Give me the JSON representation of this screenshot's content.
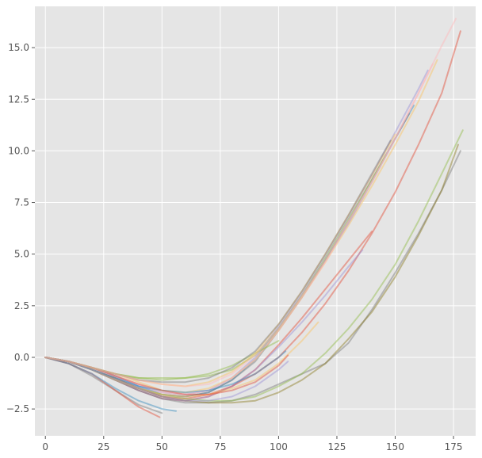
{
  "chart_data": {
    "type": "line",
    "title": "",
    "xlabel": "",
    "ylabel": "",
    "xlim": [
      -4.5,
      184.5
    ],
    "ylim": [
      -3.8,
      17.0
    ],
    "xticks": [
      0,
      25,
      50,
      75,
      100,
      125,
      150,
      175
    ],
    "yticks": [
      -2.5,
      0.0,
      2.5,
      5.0,
      7.5,
      10.0,
      12.5,
      15.0
    ],
    "xtick_labels": [
      "0",
      "25",
      "50",
      "75",
      "100",
      "125",
      "150",
      "175"
    ],
    "ytick_labels": [
      "−2.5",
      "0.0",
      "2.5",
      "5.0",
      "7.5",
      "10.0",
      "12.5",
      "15.0"
    ],
    "grid": true,
    "legend": "none",
    "style": {
      "axes_bg": "#e5e5e5",
      "grid_color": "#ffffff",
      "tick_color": "#555555",
      "line_alpha": 0.45
    },
    "series": [
      {
        "color": "#e24a33",
        "x": [
          0,
          10,
          20,
          30,
          40,
          50,
          60,
          70,
          80,
          90,
          100,
          110,
          120,
          130,
          140,
          150,
          160,
          170,
          178
        ],
        "y": [
          0,
          -0.2,
          -0.6,
          -1.0,
          -1.5,
          -1.9,
          -2.0,
          -1.8,
          -1.4,
          -0.8,
          0.0,
          1.2,
          2.6,
          4.2,
          6.0,
          8.0,
          10.3,
          12.8,
          15.8
        ]
      },
      {
        "color": "#348abd",
        "x": [
          0,
          10,
          20,
          30,
          40,
          50,
          60,
          70,
          80,
          90,
          100,
          110,
          120,
          130,
          140,
          150,
          158
        ],
        "y": [
          0,
          -0.2,
          -0.5,
          -0.9,
          -1.4,
          -1.8,
          -1.9,
          -1.7,
          -1.1,
          -0.1,
          1.4,
          3.0,
          4.7,
          6.5,
          8.5,
          10.6,
          12.2
        ]
      },
      {
        "color": "#988ed5",
        "x": [
          0,
          10,
          20,
          30,
          40,
          50,
          60,
          70,
          80,
          90,
          100,
          110,
          120,
          130,
          140,
          150,
          160,
          164
        ],
        "y": [
          0,
          -0.2,
          -0.5,
          -0.9,
          -1.4,
          -1.7,
          -1.8,
          -1.6,
          -1.0,
          0.0,
          1.5,
          3.1,
          4.9,
          6.8,
          8.8,
          10.9,
          13.0,
          13.9
        ]
      },
      {
        "color": "#777777",
        "x": [
          0,
          10,
          20,
          30,
          40,
          50,
          60,
          70,
          80,
          90,
          100,
          110,
          120,
          130,
          140,
          150,
          156
        ],
        "y": [
          0,
          -0.2,
          -0.6,
          -1.0,
          -1.5,
          -1.8,
          -1.9,
          -1.7,
          -1.1,
          -0.2,
          1.3,
          2.9,
          4.7,
          6.6,
          8.6,
          10.6,
          11.8
        ]
      },
      {
        "color": "#fbc15e",
        "x": [
          0,
          10,
          20,
          30,
          40,
          50,
          60,
          70,
          80,
          90,
          100,
          110,
          120,
          130,
          140,
          150,
          160,
          168
        ],
        "y": [
          0,
          -0.2,
          -0.5,
          -0.8,
          -1.2,
          -1.6,
          -1.7,
          -1.5,
          -1.0,
          -0.1,
          1.3,
          2.9,
          4.6,
          6.4,
          8.3,
          10.3,
          12.4,
          14.4
        ]
      },
      {
        "color": "#8eba42",
        "x": [
          0,
          10,
          20,
          30,
          40,
          50,
          60,
          70,
          80,
          90,
          100,
          110,
          120,
          130,
          140,
          146
        ],
        "y": [
          0,
          -0.2,
          -0.5,
          -0.8,
          -1.0,
          -1.0,
          -1.0,
          -0.9,
          -0.6,
          0.1,
          1.4,
          3.0,
          4.8,
          6.7,
          8.6,
          9.8
        ]
      },
      {
        "color": "#ffb5b8",
        "x": [
          0,
          10,
          20,
          30,
          40,
          50,
          60,
          70,
          80,
          90,
          100,
          110,
          120,
          130,
          140,
          150,
          160,
          170,
          176
        ],
        "y": [
          0,
          -0.2,
          -0.5,
          -0.9,
          -1.3,
          -1.7,
          -1.8,
          -1.6,
          -1.0,
          -0.1,
          1.3,
          2.9,
          4.6,
          6.5,
          8.5,
          10.6,
          12.8,
          15.1,
          16.4
        ]
      },
      {
        "color": "#e24a33",
        "x": [
          0,
          10,
          20,
          30,
          40,
          50,
          60,
          70,
          80,
          90,
          100,
          110,
          120,
          130,
          140
        ],
        "y": [
          0,
          -0.2,
          -0.6,
          -1.1,
          -1.6,
          -2.0,
          -2.1,
          -1.9,
          -1.4,
          -0.6,
          0.6,
          1.9,
          3.3,
          4.7,
          6.1
        ]
      },
      {
        "color": "#988ed5",
        "x": [
          0,
          10,
          20,
          30,
          40,
          50,
          60,
          70,
          80,
          90,
          100,
          110,
          120,
          130,
          136
        ],
        "y": [
          0,
          -0.2,
          -0.6,
          -1.1,
          -1.6,
          -2.0,
          -2.1,
          -1.9,
          -1.4,
          -0.6,
          0.5,
          1.7,
          3.0,
          4.4,
          5.2
        ]
      },
      {
        "color": "#777777",
        "x": [
          0,
          10,
          20,
          30,
          40,
          50,
          60,
          70,
          80,
          90,
          100,
          110,
          120,
          130,
          140,
          150,
          160,
          170,
          178
        ],
        "y": [
          0,
          -0.2,
          -0.6,
          -1.1,
          -1.6,
          -2.0,
          -2.2,
          -2.2,
          -2.1,
          -1.8,
          -1.3,
          -0.8,
          -0.3,
          0.7,
          2.3,
          4.1,
          6.0,
          8.1,
          10.0
        ]
      },
      {
        "color": "#8eba42",
        "x": [
          0,
          10,
          20,
          30,
          40,
          50,
          60,
          70,
          80,
          90,
          100,
          110,
          120,
          130,
          140,
          150,
          160,
          170,
          179
        ],
        "y": [
          0,
          -0.2,
          -0.6,
          -1.1,
          -1.5,
          -1.8,
          -2.0,
          -2.1,
          -2.1,
          -1.9,
          -1.4,
          -0.8,
          0.2,
          1.4,
          2.8,
          4.5,
          6.6,
          8.9,
          11.0
        ]
      },
      {
        "color": "#8a7a20",
        "x": [
          0,
          10,
          20,
          30,
          40,
          50,
          60,
          70,
          80,
          90,
          100,
          110,
          120,
          130,
          140,
          150,
          160,
          170,
          177
        ],
        "y": [
          0,
          -0.2,
          -0.6,
          -1.1,
          -1.5,
          -1.9,
          -2.1,
          -2.2,
          -2.2,
          -2.1,
          -1.7,
          -1.1,
          -0.3,
          0.9,
          2.2,
          3.9,
          5.9,
          8.1,
          10.3
        ]
      },
      {
        "color": "#fbc15e",
        "x": [
          0,
          10,
          20,
          30,
          40,
          50,
          60,
          70,
          80,
          90,
          100,
          110,
          117
        ],
        "y": [
          0,
          -0.2,
          -0.6,
          -1.1,
          -1.5,
          -1.8,
          -1.9,
          -1.8,
          -1.5,
          -1.1,
          -0.3,
          0.8,
          1.7
        ]
      },
      {
        "color": "#348abd",
        "x": [
          0,
          10,
          20,
          30,
          40,
          50,
          60,
          70,
          80,
          90,
          100,
          103
        ],
        "y": [
          0,
          -0.2,
          -0.6,
          -1.0,
          -1.4,
          -1.6,
          -1.7,
          -1.6,
          -1.3,
          -0.8,
          0.0,
          0.3
        ]
      },
      {
        "color": "#e24a33",
        "x": [
          0,
          10,
          20,
          30,
          40,
          50,
          60,
          70,
          80,
          90,
          100,
          104
        ],
        "y": [
          0,
          -0.2,
          -0.5,
          -0.9,
          -1.3,
          -1.6,
          -1.8,
          -1.8,
          -1.6,
          -1.2,
          -0.4,
          0.1
        ]
      },
      {
        "color": "#777777",
        "x": [
          0,
          10,
          20,
          30,
          40,
          50
        ],
        "y": [
          0,
          -0.3,
          -0.9,
          -1.6,
          -2.3,
          -2.7
        ]
      },
      {
        "color": "#e24a33",
        "x": [
          0,
          10,
          20,
          30,
          40,
          49
        ],
        "y": [
          0,
          -0.3,
          -0.8,
          -1.6,
          -2.4,
          -2.9
        ]
      },
      {
        "color": "#348abd",
        "x": [
          0,
          10,
          20,
          30,
          40,
          50,
          56
        ],
        "y": [
          0,
          -0.3,
          -0.8,
          -1.5,
          -2.1,
          -2.5,
          -2.6
        ]
      },
      {
        "color": "#8eba42",
        "x": [
          0,
          10,
          20,
          30,
          40,
          50,
          60,
          70,
          80,
          90,
          100
        ],
        "y": [
          0,
          -0.2,
          -0.5,
          -0.8,
          -1.0,
          -1.1,
          -1.0,
          -0.8,
          -0.4,
          0.2,
          0.8
        ]
      },
      {
        "color": "#988ed5",
        "x": [
          0,
          10,
          20,
          30,
          40,
          50,
          60,
          70,
          80,
          90,
          100,
          104
        ],
        "y": [
          0,
          -0.2,
          -0.6,
          -1.1,
          -1.5,
          -1.9,
          -2.1,
          -2.1,
          -1.9,
          -1.4,
          -0.6,
          -0.2
        ]
      },
      {
        "color": "#fbc15e",
        "x": [
          0,
          10,
          20,
          30,
          40,
          50,
          60,
          70,
          80,
          90,
          100,
          110,
          120,
          130,
          140,
          150
        ],
        "y": [
          0,
          -0.2,
          -0.5,
          -0.8,
          -1.1,
          -1.3,
          -1.4,
          -1.2,
          -0.7,
          0.2,
          1.6,
          3.2,
          5.0,
          6.9,
          8.8,
          10.8
        ]
      },
      {
        "color": "#777777",
        "x": [
          0,
          10,
          20,
          30,
          40,
          50,
          60,
          70,
          80,
          90,
          100,
          110,
          120,
          130,
          140,
          148
        ],
        "y": [
          0,
          -0.2,
          -0.5,
          -0.8,
          -1.1,
          -1.2,
          -1.2,
          -1.0,
          -0.5,
          0.3,
          1.6,
          3.2,
          5.0,
          6.9,
          8.9,
          10.5
        ]
      },
      {
        "color": "#ffb5b8",
        "x": [
          0,
          10,
          20,
          30,
          40,
          50,
          60,
          70,
          80,
          90,
          100,
          110,
          120,
          130,
          140,
          150,
          160,
          166
        ],
        "y": [
          0,
          -0.2,
          -0.5,
          -0.8,
          -1.1,
          -1.3,
          -1.4,
          -1.3,
          -0.8,
          0.1,
          1.4,
          3.0,
          4.7,
          6.6,
          8.5,
          10.6,
          12.8,
          14.2
        ]
      }
    ]
  }
}
